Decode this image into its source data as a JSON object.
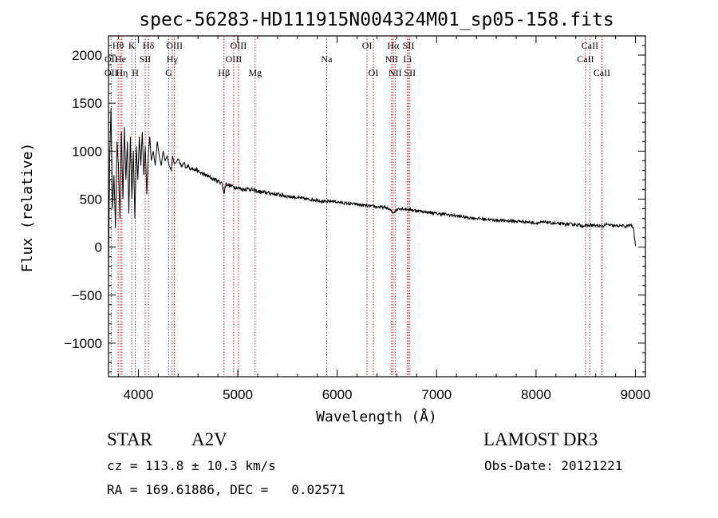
{
  "chart_data": {
    "type": "line",
    "title": "spec-56283-HD111915N004324M01_sp05-158.fits",
    "xlabel": "Wavelength (Å)",
    "ylabel": "Flux (relative)",
    "xlim": [
      3700,
      9100
    ],
    "ylim": [
      -1350,
      2200
    ],
    "x_ticks": [
      4000,
      5000,
      6000,
      7000,
      8000,
      9000
    ],
    "x_tick_labels": [
      "4000",
      "5000",
      "6000",
      "7000",
      "8000",
      "9000"
    ],
    "y_ticks": [
      2000,
      1500,
      1000,
      500,
      0,
      -500,
      -1000
    ],
    "y_tick_labels": [
      "2000",
      "1500",
      "1000",
      "500",
      "0",
      "−500",
      "−1000"
    ],
    "series": [
      {
        "name": "flux",
        "x": [
          3700,
          3712,
          3725,
          3740,
          3755,
          3770,
          3785,
          3800,
          3815,
          3830,
          3845,
          3860,
          3875,
          3890,
          3905,
          3920,
          3935,
          3950,
          3965,
          3980,
          3995,
          4010,
          4025,
          4040,
          4055,
          4070,
          4085,
          4100,
          4115,
          4130,
          4150,
          4170,
          4190,
          4210,
          4230,
          4250,
          4270,
          4290,
          4310,
          4330,
          4345,
          4360,
          4380,
          4400,
          4420,
          4440,
          4460,
          4480,
          4500,
          4520,
          4540,
          4560,
          4580,
          4600,
          4650,
          4700,
          4750,
          4800,
          4840,
          4861,
          4880,
          4920,
          4960,
          5000,
          5050,
          5100,
          5150,
          5200,
          5250,
          5300,
          5400,
          5500,
          5600,
          5700,
          5800,
          5890,
          5950,
          6000,
          6100,
          6200,
          6300,
          6400,
          6500,
          6563,
          6620,
          6700,
          6800,
          6900,
          7000,
          7100,
          7200,
          7300,
          7400,
          7500,
          7600,
          7700,
          7800,
          7900,
          8000,
          8100,
          8200,
          8300,
          8400,
          8498,
          8542,
          8600,
          8662,
          8700,
          8800,
          8850,
          8900,
          8950,
          8980,
          9000
        ],
        "values": [
          -250,
          900,
          1450,
          400,
          750,
          200,
          1100,
          850,
          300,
          1200,
          500,
          1250,
          700,
          1100,
          350,
          1150,
          500,
          1000,
          300,
          1050,
          700,
          1150,
          850,
          1200,
          750,
          1050,
          550,
          950,
          1150,
          900,
          1000,
          850,
          1100,
          950,
          850,
          1000,
          900,
          950,
          850,
          800,
          950,
          870,
          880,
          920,
          860,
          840,
          880,
          830,
          850,
          820,
          830,
          800,
          810,
          790,
          760,
          740,
          710,
          690,
          670,
          560,
          660,
          640,
          630,
          620,
          600,
          610,
          595,
          580,
          570,
          565,
          550,
          530,
          515,
          500,
          490,
          470,
          480,
          470,
          455,
          445,
          430,
          420,
          410,
          360,
          405,
          395,
          380,
          365,
          350,
          340,
          325,
          310,
          300,
          290,
          280,
          275,
          270,
          265,
          250,
          260,
          245,
          240,
          235,
          220,
          230,
          225,
          215,
          235,
          220,
          225,
          215,
          230,
          200,
          10
        ]
      }
    ],
    "line_markers": [
      {
        "label": "OII",
        "wavelength": 3727,
        "row": 2
      },
      {
        "label": "OII",
        "wavelength": 3727,
        "row": 3
      },
      {
        "label": "Hθ",
        "wavelength": 3797,
        "row": 1
      },
      {
        "label": "He",
        "wavelength": 3820,
        "row": 2
      },
      {
        "label": "Hη",
        "wavelength": 3835,
        "row": 3
      },
      {
        "label": "K",
        "wavelength": 3934,
        "row": 1
      },
      {
        "label": "H",
        "wavelength": 3969,
        "row": 3
      },
      {
        "label": "SII",
        "wavelength": 4069,
        "row": 2
      },
      {
        "label": "Hδ",
        "wavelength": 4102,
        "row": 1
      },
      {
        "label": "OIII",
        "wavelength": 4363,
        "row": 1
      },
      {
        "label": "Hγ",
        "wavelength": 4340,
        "row": 2
      },
      {
        "label": "G",
        "wavelength": 4305,
        "row": 3
      },
      {
        "label": "Hβ",
        "wavelength": 4861,
        "row": 3
      },
      {
        "label": "OIII",
        "wavelength": 4959,
        "row": 2
      },
      {
        "label": "OIII",
        "wavelength": 5007,
        "row": 1
      },
      {
        "label": "Mg",
        "wavelength": 5175,
        "row": 3
      },
      {
        "label": "Na",
        "wavelength": 5894,
        "row": 2
      },
      {
        "label": "OI",
        "wavelength": 6300,
        "row": 1
      },
      {
        "label": "OI",
        "wavelength": 6364,
        "row": 3
      },
      {
        "label": "Hα",
        "wavelength": 6563,
        "row": 1
      },
      {
        "label": "NII",
        "wavelength": 6548,
        "row": 2
      },
      {
        "label": "NII",
        "wavelength": 6583,
        "row": 3
      },
      {
        "label": "SII",
        "wavelength": 6717,
        "row": 1
      },
      {
        "label": "Li",
        "wavelength": 6707,
        "row": 2
      },
      {
        "label": "SII",
        "wavelength": 6731,
        "row": 3
      },
      {
        "label": "CaII",
        "wavelength": 8542,
        "row": 1
      },
      {
        "label": "CaII",
        "wavelength": 8498,
        "row": 2
      },
      {
        "label": "CaII",
        "wavelength": 8662,
        "row": 3
      }
    ]
  },
  "footer": {
    "object_class": "STAR",
    "subclass": "A2V",
    "survey": "LAMOST DR3",
    "redshift": "cz = 113.8 ± 10.3 km/s",
    "obs_date": "Obs-Date: 20121221",
    "coords": "RA = 169.61886, DEC =   0.02571"
  }
}
